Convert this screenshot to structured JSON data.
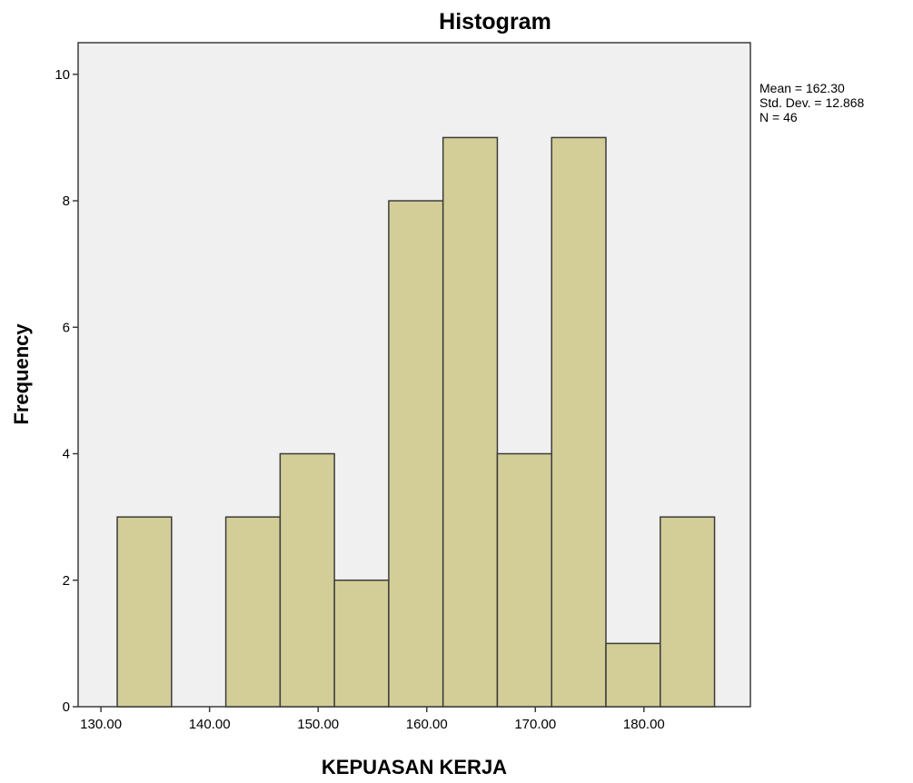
{
  "chart_data": {
    "type": "bar",
    "title": "Histogram",
    "xlabel": "KEPUASAN KERJA",
    "ylabel": "Frequency",
    "bins": [
      {
        "start": 131.5,
        "end": 136.5,
        "value": 3
      },
      {
        "start": 136.5,
        "end": 141.5,
        "value": 0
      },
      {
        "start": 141.5,
        "end": 146.5,
        "value": 3
      },
      {
        "start": 146.5,
        "end": 151.5,
        "value": 4
      },
      {
        "start": 151.5,
        "end": 156.5,
        "value": 2
      },
      {
        "start": 156.5,
        "end": 161.5,
        "value": 8
      },
      {
        "start": 161.5,
        "end": 166.5,
        "value": 9
      },
      {
        "start": 166.5,
        "end": 171.5,
        "value": 4
      },
      {
        "start": 171.5,
        "end": 176.5,
        "value": 9
      },
      {
        "start": 176.5,
        "end": 181.5,
        "value": 1
      },
      {
        "start": 181.5,
        "end": 186.5,
        "value": 3
      }
    ],
    "x_ticks": [
      {
        "value": 130,
        "label": "130.00"
      },
      {
        "value": 140,
        "label": "140.00"
      },
      {
        "value": 150,
        "label": "150.00"
      },
      {
        "value": 160,
        "label": "160.00"
      },
      {
        "value": 170,
        "label": "170.00"
      },
      {
        "value": 180,
        "label": "180.00"
      }
    ],
    "y_ticks": [
      {
        "value": 0,
        "label": "0"
      },
      {
        "value": 2,
        "label": "2"
      },
      {
        "value": 4,
        "label": "4"
      },
      {
        "value": 6,
        "label": "6"
      },
      {
        "value": 8,
        "label": "8"
      },
      {
        "value": 10,
        "label": "10"
      }
    ],
    "xlim": [
      127.9,
      189.8
    ],
    "ylim": [
      0,
      10.5
    ],
    "grid": false,
    "legend": "none",
    "stats": [
      "Mean = 162.30",
      "Std. Dev. = 12.868",
      "N = 46"
    ],
    "colors": {
      "bar_fill": "#d3ce97",
      "bar_stroke": "#3c3c3c",
      "plot_background": "#f0f0f0",
      "frame": "#3c3c3c"
    }
  }
}
